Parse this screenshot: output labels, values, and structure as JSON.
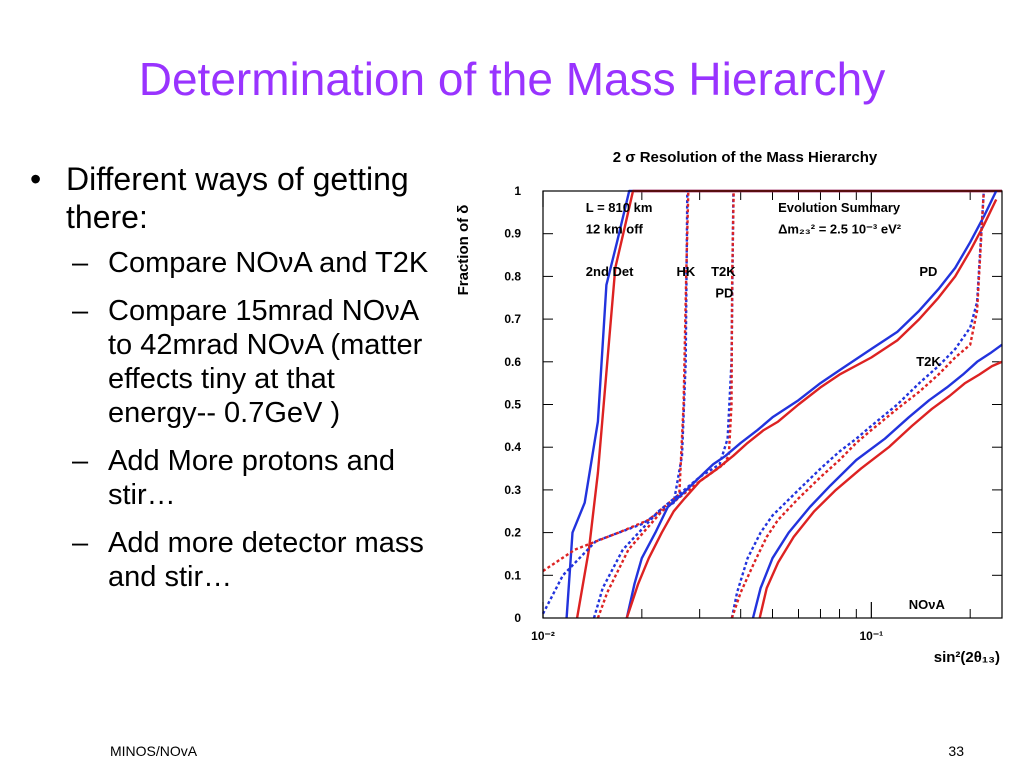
{
  "slide": {
    "title": "Determination of the Mass Hierarchy",
    "bullet": "Different ways of getting there:",
    "sub_items": [
      "Compare NOνA and T2K",
      "Compare 15mrad NOνA to 42mrad NOνA (matter effects tiny at that energy-- 0.7GeV )",
      "Add More protons and stir…",
      "Add more detector mass and stir…"
    ],
    "footer_left": "MINOS/NOvA",
    "page_number": "33"
  },
  "chart_data": {
    "type": "line",
    "title": "2 σ Resolution of the Mass Hierarchy",
    "ylabel": "Fraction of δ",
    "xlabel": "sin²(2θ₁₃)",
    "xscale": "log",
    "xlim": [
      0.01,
      0.25
    ],
    "ylim": [
      0,
      1
    ],
    "x_ticks": [
      {
        "value": 0.01,
        "label": "10⁻²"
      },
      {
        "value": 0.1,
        "label": "10⁻¹"
      }
    ],
    "y_ticks": [
      0,
      0.1,
      0.2,
      0.3,
      0.4,
      0.5,
      0.6,
      0.7,
      0.8,
      0.9,
      1
    ],
    "annotations": [
      {
        "text": "L = 810 km",
        "x": 0.0135,
        "y": 0.96
      },
      {
        "text": "12 km off",
        "x": 0.0135,
        "y": 0.91
      },
      {
        "text": "2nd Det",
        "x": 0.0135,
        "y": 0.81
      },
      {
        "text": "HK",
        "x": 0.0255,
        "y": 0.81
      },
      {
        "text": "T2K",
        "x": 0.0325,
        "y": 0.81
      },
      {
        "text": "PD",
        "x": 0.0335,
        "y": 0.76
      },
      {
        "text": "Evolution Summary",
        "x": 0.052,
        "y": 0.96
      },
      {
        "text": "Δm₂₃² = 2.5 10⁻³ eV²",
        "x": 0.052,
        "y": 0.91
      },
      {
        "text": "PD",
        "x": 0.14,
        "y": 0.81
      },
      {
        "text": "T2K",
        "x": 0.137,
        "y": 0.6
      },
      {
        "text": "NOνA",
        "x": 0.13,
        "y": 0.03
      }
    ],
    "series": [
      {
        "color": "#2233dd",
        "dashed": false,
        "points": [
          [
            0.0118,
            0
          ],
          [
            0.0123,
            0.2
          ],
          [
            0.0134,
            0.27
          ],
          [
            0.0147,
            0.46
          ],
          [
            0.0156,
            0.78
          ],
          [
            0.0168,
            0.88
          ],
          [
            0.0183,
            1
          ],
          [
            0.25,
            1
          ]
        ]
      },
      {
        "color": "#dd2222",
        "dashed": false,
        "points": [
          [
            0.0127,
            0
          ],
          [
            0.0138,
            0.16
          ],
          [
            0.0147,
            0.34
          ],
          [
            0.0157,
            0.6
          ],
          [
            0.0166,
            0.82
          ],
          [
            0.0178,
            0.92
          ],
          [
            0.0188,
            1
          ],
          [
            0.25,
            1
          ]
        ]
      },
      {
        "color": "#2233dd",
        "dashed": true,
        "points": [
          [
            0.01,
            0.01
          ],
          [
            0.0115,
            0.1
          ],
          [
            0.0145,
            0.18
          ],
          [
            0.02,
            0.22
          ],
          [
            0.025,
            0.27
          ],
          [
            0.0265,
            0.38
          ],
          [
            0.0272,
            0.6
          ],
          [
            0.0275,
            1
          ]
        ]
      },
      {
        "color": "#dd2222",
        "dashed": true,
        "points": [
          [
            0.01,
            0.11
          ],
          [
            0.0125,
            0.16
          ],
          [
            0.017,
            0.2
          ],
          [
            0.021,
            0.23
          ],
          [
            0.026,
            0.29
          ],
          [
            0.0268,
            0.5
          ],
          [
            0.0273,
            0.8
          ],
          [
            0.0277,
            1
          ]
        ]
      },
      {
        "color": "#2233dd",
        "dashed": true,
        "points": [
          [
            0.0143,
            0
          ],
          [
            0.0152,
            0.07
          ],
          [
            0.0175,
            0.16
          ],
          [
            0.0225,
            0.25
          ],
          [
            0.03,
            0.33
          ],
          [
            0.0345,
            0.36
          ],
          [
            0.0365,
            0.42
          ],
          [
            0.0375,
            0.6
          ],
          [
            0.038,
            1
          ]
        ]
      },
      {
        "color": "#dd2222",
        "dashed": true,
        "points": [
          [
            0.0147,
            0
          ],
          [
            0.0157,
            0.06
          ],
          [
            0.0182,
            0.16
          ],
          [
            0.023,
            0.25
          ],
          [
            0.03,
            0.32
          ],
          [
            0.0355,
            0.36
          ],
          [
            0.0368,
            0.38
          ],
          [
            0.0375,
            0.5
          ],
          [
            0.0377,
            0.8
          ],
          [
            0.0381,
            1
          ]
        ]
      },
      {
        "color": "#2233dd",
        "dashed": false,
        "points": [
          [
            0.018,
            0
          ],
          [
            0.019,
            0.08
          ],
          [
            0.02,
            0.14
          ],
          [
            0.022,
            0.2
          ],
          [
            0.024,
            0.26
          ],
          [
            0.0265,
            0.29
          ],
          [
            0.03,
            0.33
          ],
          [
            0.033,
            0.36
          ],
          [
            0.036,
            0.38
          ],
          [
            0.04,
            0.41
          ],
          [
            0.045,
            0.44
          ],
          [
            0.05,
            0.47
          ],
          [
            0.06,
            0.51
          ],
          [
            0.07,
            0.55
          ],
          [
            0.08,
            0.58
          ],
          [
            0.1,
            0.63
          ],
          [
            0.12,
            0.67
          ],
          [
            0.14,
            0.72
          ],
          [
            0.16,
            0.77
          ],
          [
            0.18,
            0.82
          ],
          [
            0.2,
            0.88
          ],
          [
            0.22,
            0.94
          ],
          [
            0.24,
            1
          ]
        ]
      },
      {
        "color": "#dd2222",
        "dashed": false,
        "points": [
          [
            0.018,
            0
          ],
          [
            0.0195,
            0.08
          ],
          [
            0.021,
            0.14
          ],
          [
            0.023,
            0.2
          ],
          [
            0.025,
            0.25
          ],
          [
            0.027,
            0.28
          ],
          [
            0.03,
            0.32
          ],
          [
            0.034,
            0.35
          ],
          [
            0.038,
            0.38
          ],
          [
            0.042,
            0.41
          ],
          [
            0.047,
            0.44
          ],
          [
            0.052,
            0.46
          ],
          [
            0.06,
            0.5
          ],
          [
            0.07,
            0.54
          ],
          [
            0.08,
            0.57
          ],
          [
            0.1,
            0.61
          ],
          [
            0.12,
            0.65
          ],
          [
            0.14,
            0.7
          ],
          [
            0.16,
            0.75
          ],
          [
            0.18,
            0.8
          ],
          [
            0.2,
            0.86
          ],
          [
            0.22,
            0.92
          ],
          [
            0.24,
            0.98
          ]
        ]
      },
      {
        "color": "#2233dd",
        "dashed": true,
        "points": [
          [
            0.0376,
            0
          ],
          [
            0.039,
            0.06
          ],
          [
            0.042,
            0.14
          ],
          [
            0.046,
            0.2
          ],
          [
            0.05,
            0.24
          ],
          [
            0.06,
            0.3
          ],
          [
            0.07,
            0.35
          ],
          [
            0.08,
            0.39
          ],
          [
            0.09,
            0.42
          ],
          [
            0.1,
            0.45
          ],
          [
            0.12,
            0.5
          ],
          [
            0.14,
            0.55
          ],
          [
            0.16,
            0.59
          ],
          [
            0.18,
            0.63
          ],
          [
            0.2,
            0.68
          ],
          [
            0.21,
            0.74
          ],
          [
            0.22,
            1
          ]
        ]
      },
      {
        "color": "#dd2222",
        "dashed": true,
        "points": [
          [
            0.0376,
            0
          ],
          [
            0.04,
            0.06
          ],
          [
            0.044,
            0.13
          ],
          [
            0.048,
            0.19
          ],
          [
            0.052,
            0.23
          ],
          [
            0.06,
            0.28
          ],
          [
            0.07,
            0.33
          ],
          [
            0.08,
            0.37
          ],
          [
            0.09,
            0.41
          ],
          [
            0.1,
            0.44
          ],
          [
            0.12,
            0.49
          ],
          [
            0.14,
            0.53
          ],
          [
            0.16,
            0.57
          ],
          [
            0.18,
            0.61
          ],
          [
            0.2,
            0.64
          ],
          [
            0.21,
            0.72
          ],
          [
            0.22,
            1
          ]
        ]
      },
      {
        "color": "#2233dd",
        "dashed": false,
        "points": [
          [
            0.0436,
            0
          ],
          [
            0.046,
            0.07
          ],
          [
            0.05,
            0.14
          ],
          [
            0.056,
            0.2
          ],
          [
            0.065,
            0.26
          ],
          [
            0.075,
            0.31
          ],
          [
            0.09,
            0.37
          ],
          [
            0.11,
            0.42
          ],
          [
            0.13,
            0.47
          ],
          [
            0.15,
            0.51
          ],
          [
            0.17,
            0.54
          ],
          [
            0.19,
            0.57
          ],
          [
            0.21,
            0.6
          ],
          [
            0.23,
            0.62
          ],
          [
            0.25,
            0.64
          ]
        ]
      },
      {
        "color": "#dd2222",
        "dashed": false,
        "points": [
          [
            0.0457,
            0
          ],
          [
            0.048,
            0.07
          ],
          [
            0.052,
            0.13
          ],
          [
            0.058,
            0.19
          ],
          [
            0.067,
            0.25
          ],
          [
            0.078,
            0.3
          ],
          [
            0.093,
            0.35
          ],
          [
            0.113,
            0.4
          ],
          [
            0.133,
            0.45
          ],
          [
            0.153,
            0.49
          ],
          [
            0.173,
            0.52
          ],
          [
            0.193,
            0.55
          ],
          [
            0.213,
            0.57
          ],
          [
            0.233,
            0.59
          ],
          [
            0.25,
            0.6
          ]
        ]
      }
    ]
  }
}
